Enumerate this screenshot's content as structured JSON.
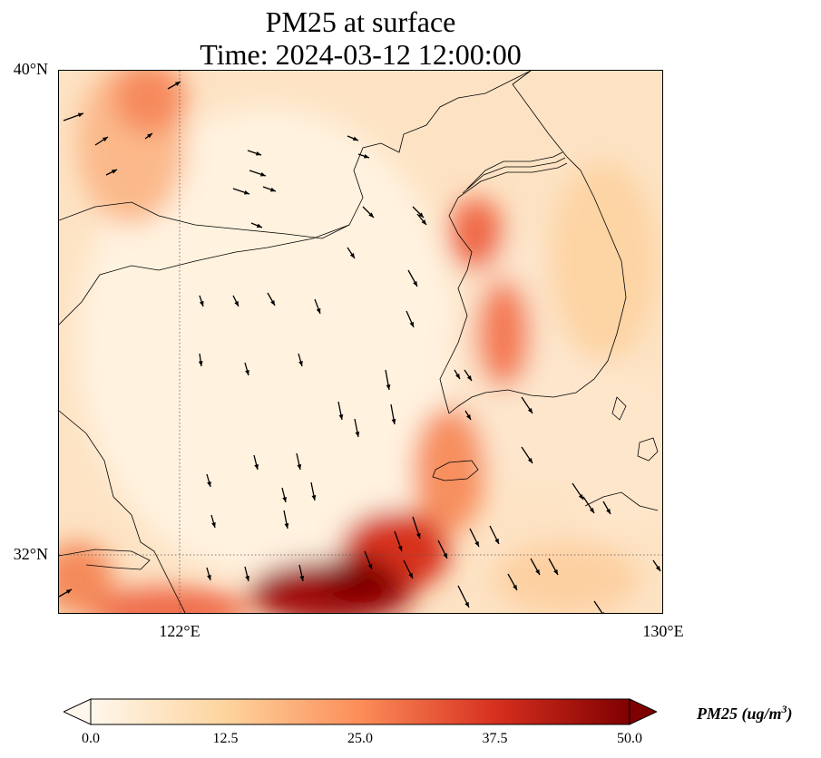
{
  "title": {
    "line1": "PM25 at surface",
    "line2": "Time: 2024-03-12 12:00:00"
  },
  "axes": {
    "lat_labels": [
      "40°N",
      "32°N"
    ],
    "lon_labels": [
      "122°E",
      "130°E"
    ],
    "extent": {
      "lon": [
        120,
        130
      ],
      "lat": [
        31,
        40
      ]
    },
    "gridlines": {
      "lon": [
        122
      ],
      "lat": [
        32
      ],
      "style": "dotted"
    }
  },
  "colorbar": {
    "label_main": "PM25 (ug/m",
    "label_sup": "3",
    "label_end": ")",
    "ticks": [
      "0.0",
      "12.5",
      "25.0",
      "37.5",
      "50.0"
    ],
    "range": [
      0,
      50
    ],
    "colormap": "OrRd",
    "extend": "both",
    "colors": [
      "#fff7ec",
      "#fdd49e",
      "#fc8d59",
      "#d7301f",
      "#7f0000"
    ]
  },
  "overlays": {
    "wind_vectors": "black arrows, predominantly north-northwesterly flow",
    "coastlines": "black"
  }
}
